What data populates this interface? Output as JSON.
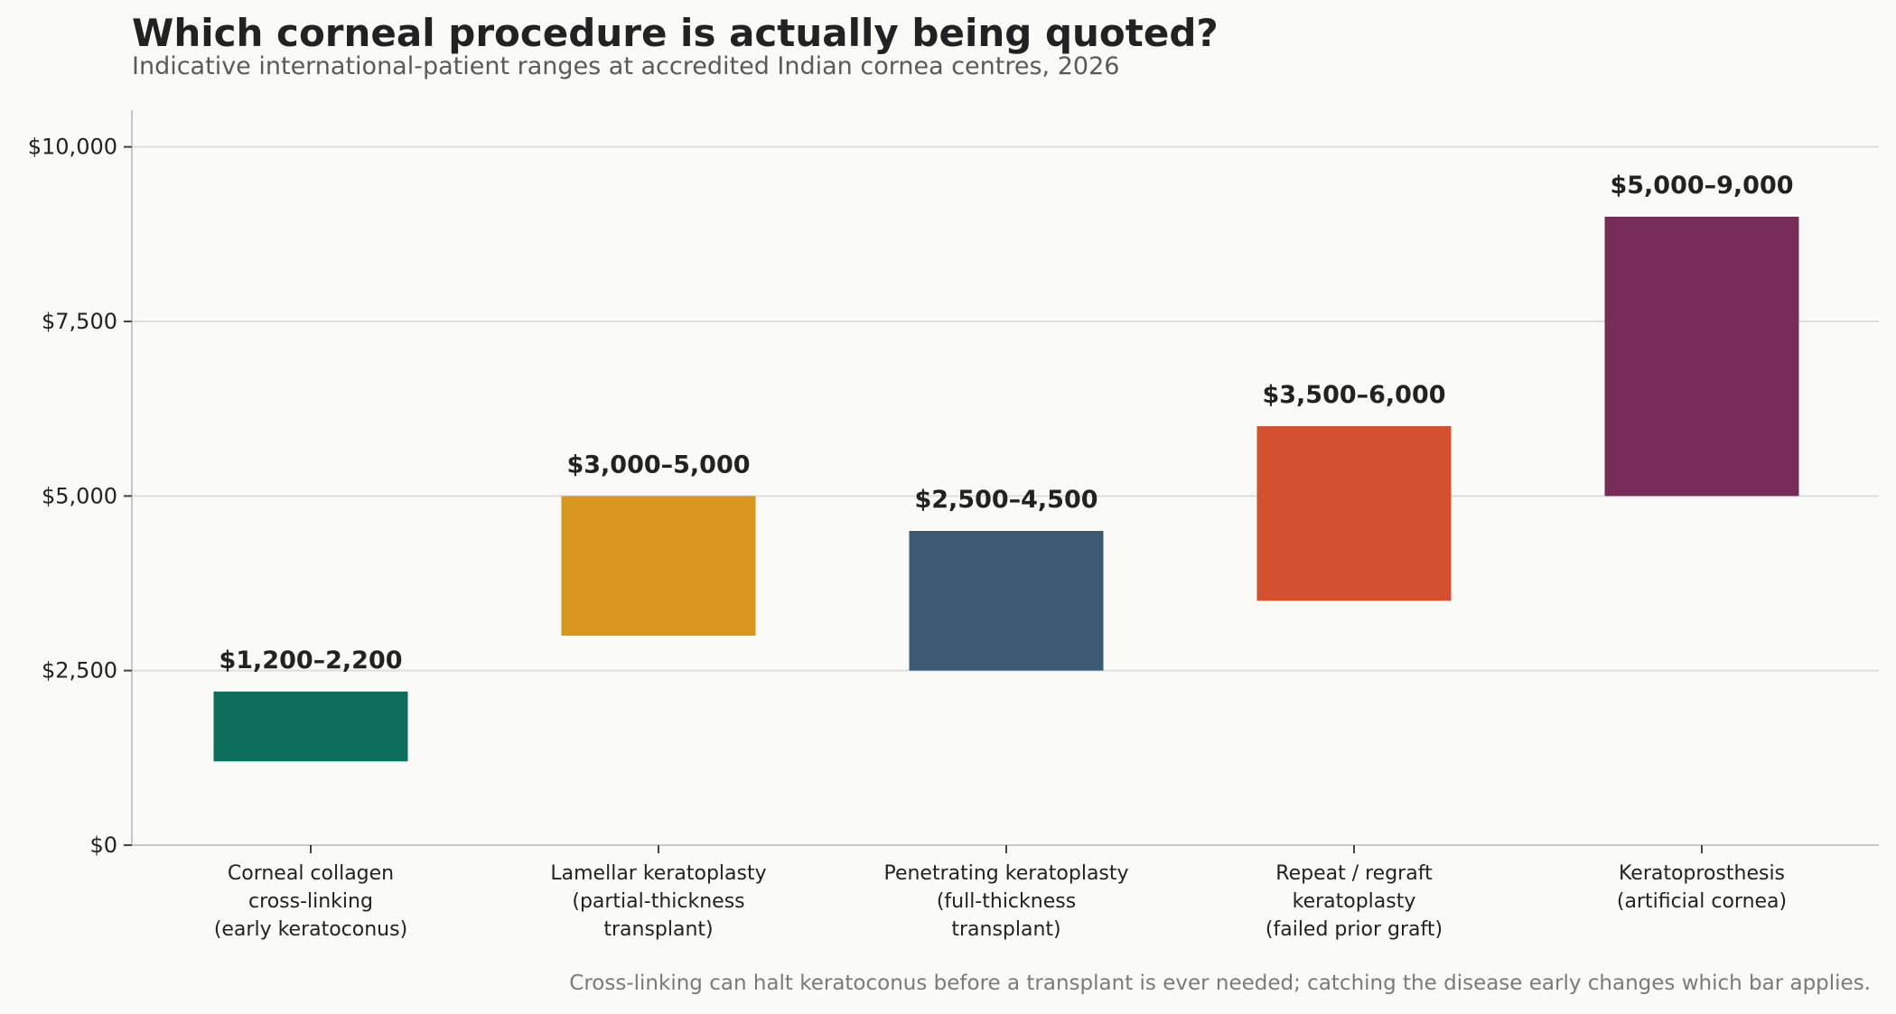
{
  "chart_data": {
    "type": "bar",
    "title": "Which corneal procedure is actually being quoted?",
    "subtitle": "Indicative international-patient ranges at accredited Indian cornea centres, 2026",
    "note": "Cross-linking can halt keratoconus before a transplant is ever needed; catching the disease early changes which bar applies.",
    "xlabel": "",
    "ylabel": "",
    "ylim": [
      0,
      10500
    ],
    "yticks": [
      0,
      2500,
      5000,
      7500,
      10000
    ],
    "ytick_labels": [
      "$0",
      "$2,500",
      "$5,000",
      "$7,500",
      "$10,000"
    ],
    "grid": "horizontal",
    "categories": [
      [
        "Corneal collagen",
        "cross-linking",
        "(early keratoconus)"
      ],
      [
        "Lamellar keratoplasty",
        "(partial-thickness",
        "transplant)"
      ],
      [
        "Penetrating keratoplasty",
        "(full-thickness",
        "transplant)"
      ],
      [
        "Repeat / regraft",
        "keratoplasty",
        "(failed prior graft)"
      ],
      [
        "Keratoprosthesis",
        "(artificial cornea)"
      ]
    ],
    "ranges": [
      {
        "low": 1200,
        "high": 2200,
        "label": "$1,200–2,200",
        "color": "#0e6e5c"
      },
      {
        "low": 3000,
        "high": 5000,
        "label": "$3,000–5,000",
        "color": "#d8971f"
      },
      {
        "low": 2500,
        "high": 4500,
        "label": "$2,500–4,500",
        "color": "#3c5a73"
      },
      {
        "low": 3500,
        "high": 6000,
        "label": "$3,500–6,000",
        "color": "#d2502e"
      },
      {
        "low": 5000,
        "high": 9000,
        "label": "$5,000–9,000",
        "color": "#782d58"
      }
    ],
    "colors": {
      "grid": "#dedede",
      "axis": "#c8c8c8",
      "background": "#fafaf6"
    }
  }
}
